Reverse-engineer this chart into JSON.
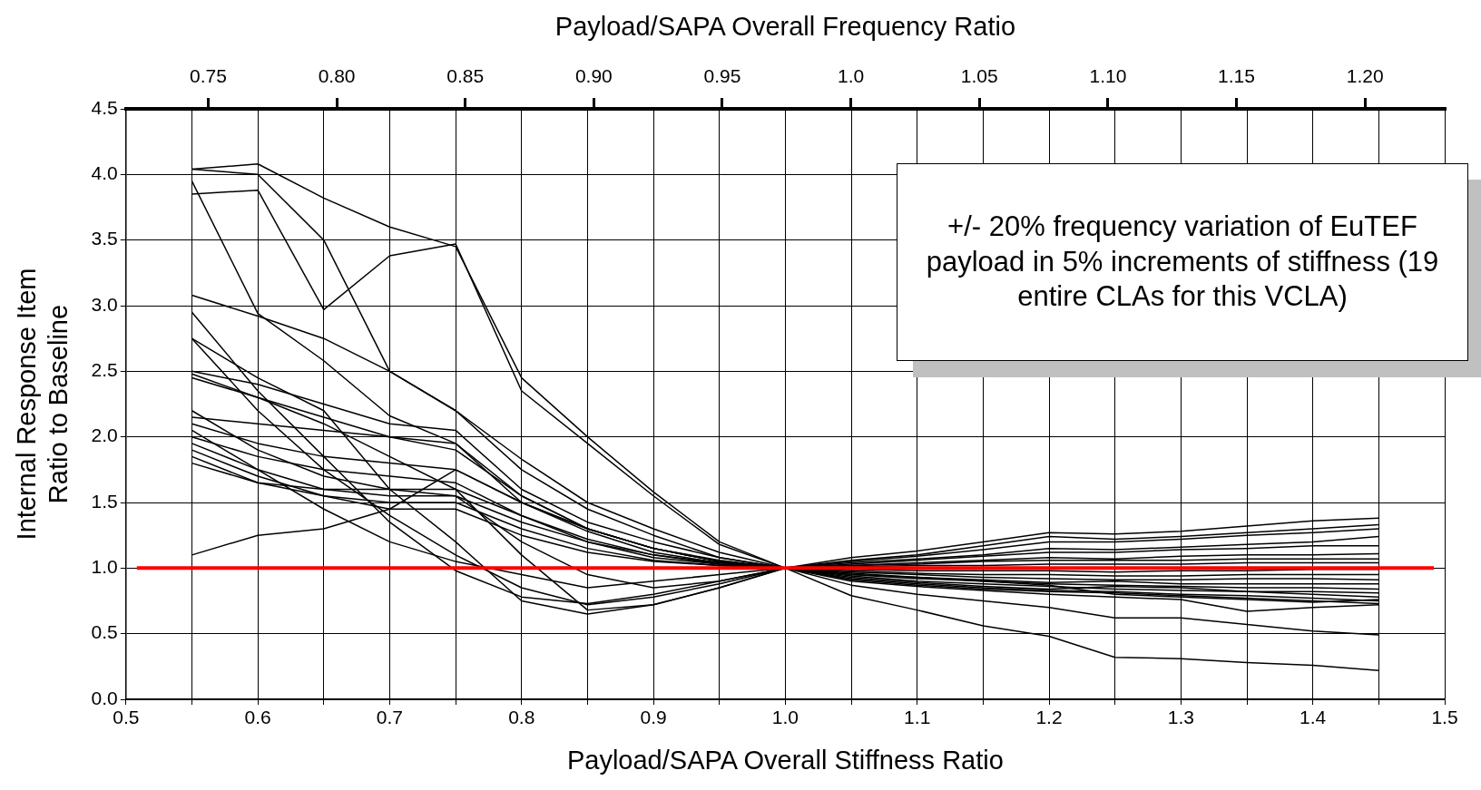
{
  "chart_data": {
    "type": "line",
    "xlabel": "Payload/SAPA Overall Stiffness Ratio",
    "ylabel": "Internal Response Item\nRatio to Baseline",
    "x2label": "Payload/SAPA Overall Frequency Ratio",
    "xlim": [
      0.5,
      1.5
    ],
    "xticks": [
      {
        "value": 0.5,
        "label": "0.5"
      },
      {
        "value": 0.55,
        "label": null
      },
      {
        "value": 0.6,
        "label": "0.6"
      },
      {
        "value": 0.65,
        "label": null
      },
      {
        "value": 0.7,
        "label": "0.7"
      },
      {
        "value": 0.75,
        "label": null
      },
      {
        "value": 0.8,
        "label": "0.8"
      },
      {
        "value": 0.85,
        "label": null
      },
      {
        "value": 0.9,
        "label": "0.9"
      },
      {
        "value": 0.95,
        "label": null
      },
      {
        "value": 1.0,
        "label": "1.0"
      },
      {
        "value": 1.05,
        "label": null
      },
      {
        "value": 1.1,
        "label": "1.1"
      },
      {
        "value": 1.15,
        "label": null
      },
      {
        "value": 1.2,
        "label": "1.2"
      },
      {
        "value": 1.25,
        "label": null
      },
      {
        "value": 1.3,
        "label": "1.3"
      },
      {
        "value": 1.35,
        "label": null
      },
      {
        "value": 1.4,
        "label": "1.4"
      },
      {
        "value": 1.45,
        "label": null
      },
      {
        "value": 1.5,
        "label": "1.5"
      }
    ],
    "x2lim": [
      0.718,
      1.231
    ],
    "x2ticks": [
      0.75,
      {
        "value": 0.8,
        "label": "0.80"
      },
      0.85,
      {
        "value": 0.9,
        "label": "0.90"
      },
      0.95,
      {
        "value": 1.0,
        "label": "1.0"
      },
      1.05,
      {
        "value": 1.1,
        "label": "1.10"
      },
      1.15,
      {
        "value": 1.2,
        "label": "1.20"
      }
    ],
    "ylim": [
      0,
      4.5
    ],
    "yticks": [
      {
        "value": 0,
        "label": "0.0"
      },
      {
        "value": 0.5,
        "label": "0.5"
      },
      {
        "value": 1,
        "label": "1.0"
      },
      {
        "value": 1.5,
        "label": "1.5"
      },
      {
        "value": 2,
        "label": "2.0"
      },
      {
        "value": 2.5,
        "label": "2.5"
      },
      {
        "value": 3,
        "label": "3.0"
      },
      {
        "value": 3.5,
        "label": "3.5"
      },
      {
        "value": 4,
        "label": "4.0"
      },
      {
        "value": 4.5,
        "label": "4.5"
      }
    ],
    "grid": true,
    "marker": "none",
    "line_style": "solid",
    "x": [
      0.55,
      0.6,
      0.65,
      0.7,
      0.75,
      0.8,
      0.85,
      0.9,
      0.95,
      1.0,
      1.05,
      1.1,
      1.15,
      1.2,
      1.25,
      1.3,
      1.35,
      1.4,
      1.45
    ],
    "series": [
      {
        "color": "#000000",
        "values": [
          4.04,
          4.08,
          3.82,
          3.6,
          3.45,
          2.45,
          2.0,
          1.58,
          1.2,
          1.0,
          0.79,
          0.68,
          0.56,
          0.48,
          0.32,
          0.31,
          0.28,
          0.26,
          0.22
        ]
      },
      {
        "color": "#000000",
        "values": [
          3.85,
          3.88,
          2.97,
          3.38,
          3.47,
          2.35,
          1.95,
          1.55,
          1.18,
          1.0,
          0.87,
          0.8,
          0.75,
          0.7,
          0.62,
          0.62,
          0.57,
          0.52,
          0.49
        ]
      },
      {
        "color": "#000000",
        "values": [
          4.04,
          4.0,
          3.5,
          2.5,
          2.2,
          1.83,
          1.5,
          1.3,
          1.12,
          1.0,
          1.08,
          1.13,
          1.2,
          1.27,
          1.26,
          1.28,
          1.32,
          1.36,
          1.38
        ]
      },
      {
        "color": "#000000",
        "values": [
          3.95,
          2.94,
          2.58,
          2.16,
          1.95,
          1.5,
          1.3,
          1.15,
          1.05,
          1.0,
          1.06,
          1.1,
          1.17,
          1.24,
          1.22,
          1.24,
          1.27,
          1.3,
          1.33
        ]
      },
      {
        "color": "#000000",
        "values": [
          3.08,
          2.92,
          2.75,
          2.5,
          2.2,
          1.75,
          1.45,
          1.25,
          1.08,
          1.0,
          1.05,
          1.09,
          1.14,
          1.2,
          1.2,
          1.22,
          1.25,
          1.27,
          1.3
        ]
      },
      {
        "color": "#000000",
        "values": [
          2.95,
          2.35,
          1.85,
          1.35,
          0.98,
          0.78,
          0.73,
          0.8,
          0.9,
          1.0,
          1.04,
          1.07,
          1.1,
          1.15,
          1.14,
          1.16,
          1.18,
          1.2,
          1.24
        ]
      },
      {
        "color": "#000000",
        "values": [
          2.75,
          2.2,
          1.75,
          1.4,
          1.1,
          0.85,
          0.72,
          0.78,
          0.88,
          1.0,
          1.03,
          1.06,
          1.09,
          1.12,
          1.12,
          1.14,
          1.15,
          1.17,
          1.17
        ]
      },
      {
        "color": "#000000",
        "values": [
          2.48,
          2.3,
          2.1,
          1.85,
          1.6,
          1.1,
          0.68,
          0.72,
          0.85,
          1.0,
          1.02,
          1.04,
          1.06,
          1.08,
          1.07,
          1.09,
          1.1,
          1.1,
          1.11
        ]
      },
      {
        "color": "#000000",
        "values": [
          1.1,
          1.25,
          1.3,
          1.45,
          1.75,
          1.5,
          1.3,
          1.15,
          1.05,
          1.0,
          1.02,
          1.03,
          1.05,
          1.06,
          1.06,
          1.06,
          1.07,
          1.07,
          1.07
        ]
      },
      {
        "color": "#000000",
        "values": [
          2.5,
          2.4,
          2.25,
          2.1,
          2.05,
          1.6,
          1.35,
          1.2,
          1.08,
          1.0,
          1.01,
          1.02,
          1.02,
          1.03,
          1.03,
          1.03,
          1.04,
          1.04,
          1.04
        ]
      },
      {
        "color": "#000000",
        "values": [
          2.45,
          2.3,
          2.15,
          2.0,
          1.9,
          1.55,
          1.3,
          1.15,
          1.06,
          1.0,
          0.99,
          0.98,
          0.98,
          0.98,
          0.97,
          0.98,
          0.98,
          0.99,
          0.99
        ]
      },
      {
        "color": "#000000",
        "values": [
          2.15,
          2.1,
          2.05,
          2.0,
          1.95,
          1.55,
          1.3,
          1.15,
          1.05,
          1.0,
          0.98,
          0.96,
          0.95,
          0.95,
          0.94,
          0.94,
          0.95,
          0.95,
          0.95
        ]
      },
      {
        "color": "#000000",
        "values": [
          2.1,
          1.95,
          1.85,
          1.8,
          1.75,
          1.5,
          1.28,
          1.12,
          1.04,
          1.0,
          0.97,
          0.95,
          0.93,
          0.92,
          0.91,
          0.91,
          0.92,
          0.92,
          0.91
        ]
      },
      {
        "color": "#000000",
        "values": [
          2.0,
          1.85,
          1.75,
          1.7,
          1.65,
          1.4,
          1.2,
          1.1,
          1.03,
          1.0,
          0.96,
          0.93,
          0.91,
          0.89,
          0.9,
          0.88,
          0.88,
          0.88,
          0.88
        ]
      },
      {
        "color": "#000000",
        "values": [
          1.95,
          1.75,
          1.6,
          1.55,
          1.55,
          1.35,
          1.2,
          1.08,
          1.03,
          1.0,
          0.95,
          0.92,
          0.9,
          0.88,
          0.87,
          0.86,
          0.85,
          0.85,
          0.84
        ]
      },
      {
        "color": "#000000",
        "values": [
          1.9,
          1.7,
          1.55,
          1.5,
          1.5,
          1.3,
          1.15,
          1.06,
          1.02,
          1.0,
          0.94,
          0.9,
          0.88,
          0.86,
          0.84,
          0.83,
          0.82,
          0.82,
          0.81
        ]
      },
      {
        "color": "#000000",
        "values": [
          1.85,
          1.65,
          1.55,
          1.45,
          1.45,
          1.25,
          1.12,
          1.05,
          1.02,
          1.0,
          0.93,
          0.89,
          0.86,
          0.84,
          0.86,
          0.85,
          0.82,
          0.8,
          0.78
        ]
      },
      {
        "color": "#000000",
        "values": [
          1.8,
          1.65,
          1.6,
          1.6,
          1.6,
          1.4,
          1.22,
          1.1,
          1.04,
          1.0,
          0.92,
          0.88,
          0.85,
          0.83,
          0.82,
          0.8,
          0.79,
          0.77,
          0.75
        ]
      },
      {
        "color": "#000000",
        "values": [
          2.2,
          1.9,
          1.7,
          1.6,
          1.55,
          1.2,
          0.95,
          0.85,
          0.9,
          1.0,
          0.91,
          0.87,
          0.84,
          0.82,
          0.81,
          0.79,
          0.77,
          0.75,
          0.73
        ]
      },
      {
        "color": "#000000",
        "values": [
          2.05,
          1.75,
          1.45,
          1.2,
          1.05,
          0.95,
          0.85,
          0.9,
          0.95,
          1.0,
          0.9,
          0.86,
          0.83,
          0.8,
          0.78,
          0.76,
          0.67,
          0.7,
          0.72
        ]
      },
      {
        "color": "#000000",
        "values": [
          2.75,
          2.45,
          2.2,
          1.6,
          1.2,
          0.75,
          0.65,
          0.72,
          0.85,
          1.0,
          0.95,
          0.93,
          0.9,
          0.87,
          0.8,
          0.78,
          0.76,
          0.74,
          0.76
        ]
      }
    ],
    "ref_lines": [
      {
        "axis": "y",
        "value": 1,
        "color": "#ff0000"
      }
    ],
    "annotations": [
      "+/- 20% frequency variation of EuTEF payload in 5% increments of stiffness (19 entire CLAs for this VCLA)"
    ]
  }
}
